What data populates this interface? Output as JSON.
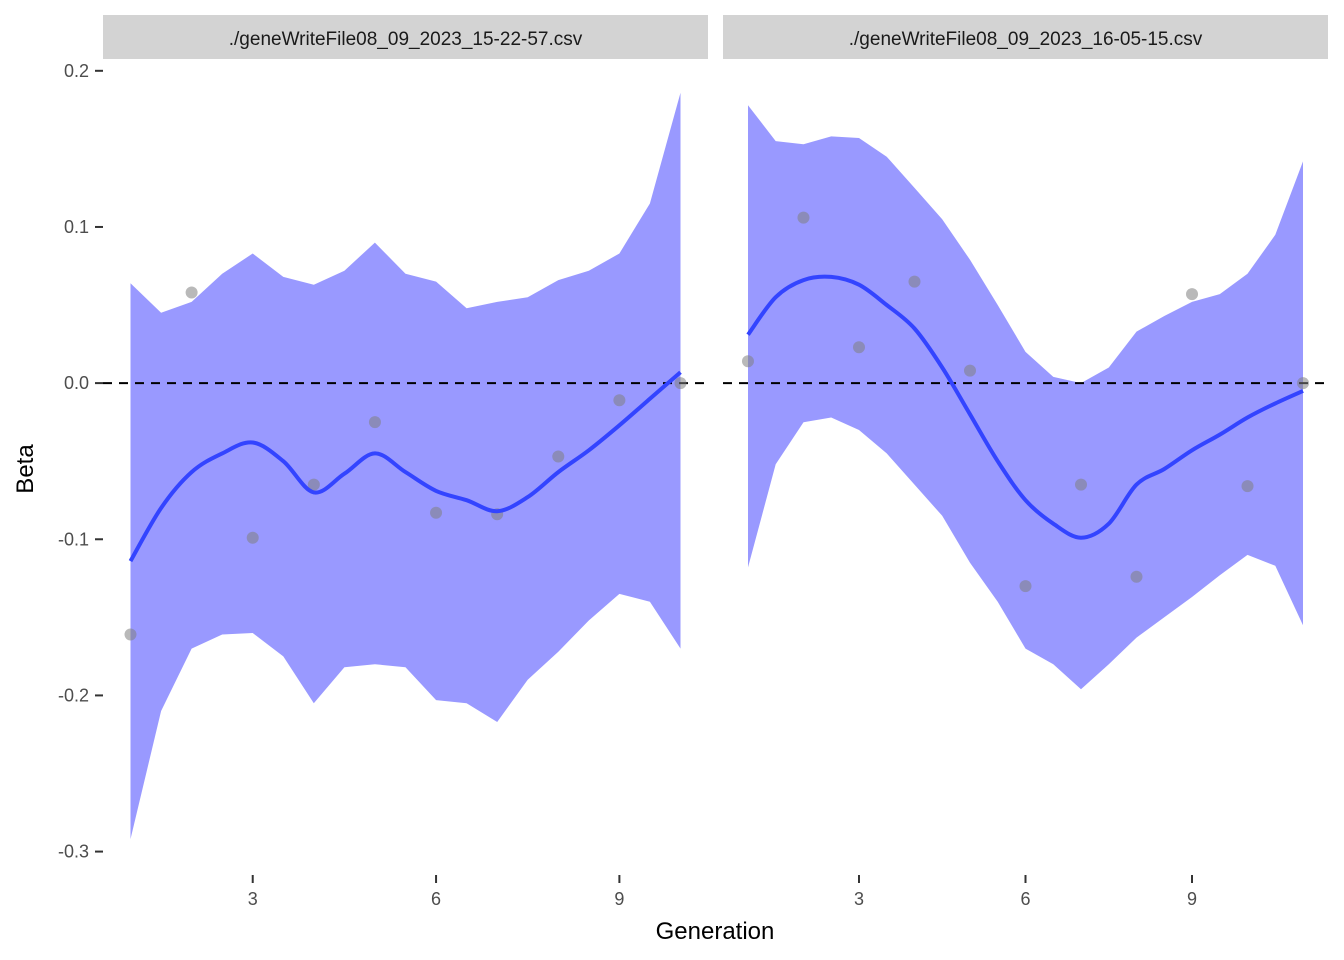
{
  "chart_data": {
    "type": "scatter",
    "xlabel": "Generation",
    "ylabel": "Beta",
    "x_ticks": [
      3,
      6,
      9
    ],
    "y_ticks": [
      0.2,
      0.1,
      0.0,
      -0.1,
      -0.2,
      -0.3
    ],
    "y_tick_labels": [
      "0.2",
      "0.1",
      "0.0",
      "-0.1",
      "-0.2",
      "-0.3"
    ],
    "x_tick_labels": [
      "3",
      "6",
      "9"
    ],
    "ylim": [
      -0.315,
      0.205
    ],
    "reference_line_y": 0,
    "colors": {
      "smooth": "#3344ff",
      "band": "#9999ff",
      "point": "#7f7f7f",
      "strip": "#d3d3d3",
      "refline": "#000000"
    },
    "panels": [
      {
        "title": "./geneWriteFile08_09_2023_15-22-57.csv",
        "xlim": [
          0.55,
          10.45
        ],
        "points": [
          {
            "x": 1,
            "y": -0.161
          },
          {
            "x": 2,
            "y": 0.058
          },
          {
            "x": 3,
            "y": -0.099
          },
          {
            "x": 4,
            "y": -0.065
          },
          {
            "x": 5,
            "y": -0.025
          },
          {
            "x": 6,
            "y": -0.083
          },
          {
            "x": 7,
            "y": -0.084
          },
          {
            "x": 8,
            "y": -0.047
          },
          {
            "x": 9,
            "y": -0.011
          },
          {
            "x": 10,
            "y": 0.0
          }
        ],
        "smooth": [
          {
            "x": 1,
            "y": -0.114,
            "lo": -0.292,
            "hi": 0.064
          },
          {
            "x": 1.5,
            "y": -0.08,
            "lo": -0.21,
            "hi": 0.045
          },
          {
            "x": 2,
            "y": -0.057,
            "lo": -0.17,
            "hi": 0.052
          },
          {
            "x": 2.5,
            "y": -0.045,
            "lo": -0.161,
            "hi": 0.07
          },
          {
            "x": 3,
            "y": -0.038,
            "lo": -0.16,
            "hi": 0.083
          },
          {
            "x": 3.5,
            "y": -0.05,
            "lo": -0.175,
            "hi": 0.068
          },
          {
            "x": 4,
            "y": -0.07,
            "lo": -0.205,
            "hi": 0.063
          },
          {
            "x": 4.5,
            "y": -0.058,
            "lo": -0.182,
            "hi": 0.072
          },
          {
            "x": 5,
            "y": -0.045,
            "lo": -0.18,
            "hi": 0.09
          },
          {
            "x": 5.5,
            "y": -0.057,
            "lo": -0.182,
            "hi": 0.07
          },
          {
            "x": 6,
            "y": -0.069,
            "lo": -0.203,
            "hi": 0.065
          },
          {
            "x": 6.5,
            "y": -0.075,
            "lo": -0.205,
            "hi": 0.048
          },
          {
            "x": 7,
            "y": -0.082,
            "lo": -0.217,
            "hi": 0.052
          },
          {
            "x": 7.5,
            "y": -0.073,
            "lo": -0.19,
            "hi": 0.055
          },
          {
            "x": 8,
            "y": -0.057,
            "lo": -0.172,
            "hi": 0.066
          },
          {
            "x": 8.5,
            "y": -0.043,
            "lo": -0.152,
            "hi": 0.072
          },
          {
            "x": 9,
            "y": -0.027,
            "lo": -0.135,
            "hi": 0.083
          },
          {
            "x": 9.5,
            "y": -0.01,
            "lo": -0.14,
            "hi": 0.115
          },
          {
            "x": 10,
            "y": 0.007,
            "lo": -0.17,
            "hi": 0.186
          }
        ]
      },
      {
        "title": "./geneWriteFile08_09_2023_16-05-15.csv",
        "xlim": [
          0.55,
          11.45
        ],
        "points": [
          {
            "x": 1,
            "y": 0.014
          },
          {
            "x": 2,
            "y": 0.106
          },
          {
            "x": 3,
            "y": 0.023
          },
          {
            "x": 4,
            "y": 0.065
          },
          {
            "x": 5,
            "y": 0.008
          },
          {
            "x": 6,
            "y": -0.13
          },
          {
            "x": 7,
            "y": -0.065
          },
          {
            "x": 8,
            "y": -0.124
          },
          {
            "x": 9,
            "y": 0.057
          },
          {
            "x": 10,
            "y": -0.066
          },
          {
            "x": 11,
            "y": 0.0
          }
        ],
        "smooth": [
          {
            "x": 1,
            "y": 0.031,
            "lo": -0.118,
            "hi": 0.178
          },
          {
            "x": 1.5,
            "y": 0.055,
            "lo": -0.052,
            "hi": 0.155
          },
          {
            "x": 2,
            "y": 0.066,
            "lo": -0.025,
            "hi": 0.153
          },
          {
            "x": 2.5,
            "y": 0.068,
            "lo": -0.022,
            "hi": 0.158
          },
          {
            "x": 3,
            "y": 0.063,
            "lo": -0.03,
            "hi": 0.157
          },
          {
            "x": 3.5,
            "y": 0.05,
            "lo": -0.045,
            "hi": 0.145
          },
          {
            "x": 4,
            "y": 0.035,
            "lo": -0.065,
            "hi": 0.125
          },
          {
            "x": 4.5,
            "y": 0.01,
            "lo": -0.085,
            "hi": 0.105
          },
          {
            "x": 5,
            "y": -0.02,
            "lo": -0.115,
            "hi": 0.079
          },
          {
            "x": 5.5,
            "y": -0.05,
            "lo": -0.14,
            "hi": 0.05
          },
          {
            "x": 6,
            "y": -0.075,
            "lo": -0.17,
            "hi": 0.02
          },
          {
            "x": 6.5,
            "y": -0.09,
            "lo": -0.18,
            "hi": 0.004
          },
          {
            "x": 7,
            "y": -0.099,
            "lo": -0.196,
            "hi": 0.0
          },
          {
            "x": 7.5,
            "y": -0.09,
            "lo": -0.18,
            "hi": 0.01
          },
          {
            "x": 8,
            "y": -0.065,
            "lo": -0.163,
            "hi": 0.033
          },
          {
            "x": 8.5,
            "y": -0.055,
            "lo": -0.15,
            "hi": 0.043
          },
          {
            "x": 9,
            "y": -0.043,
            "lo": -0.137,
            "hi": 0.052
          },
          {
            "x": 9.5,
            "y": -0.033,
            "lo": -0.123,
            "hi": 0.057
          },
          {
            "x": 10,
            "y": -0.022,
            "lo": -0.11,
            "hi": 0.07
          },
          {
            "x": 10.5,
            "y": -0.013,
            "lo": -0.117,
            "hi": 0.095
          },
          {
            "x": 11,
            "y": -0.005,
            "lo": -0.155,
            "hi": 0.142
          }
        ]
      }
    ]
  }
}
